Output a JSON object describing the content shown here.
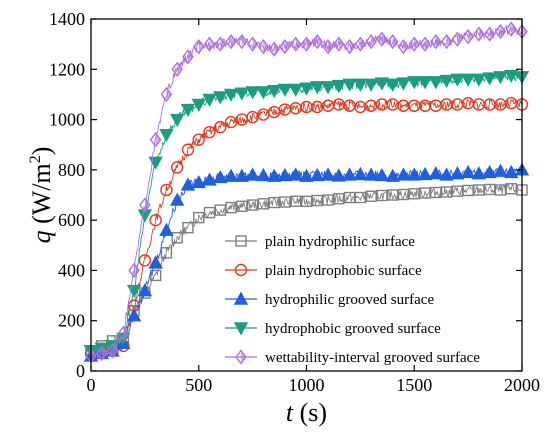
{
  "chart_data": {
    "type": "line",
    "title": "",
    "xlabel": {
      "symbol": "t",
      "unit": " (s)"
    },
    "ylabel": {
      "symbol": "q",
      "unit_open": " (W/m",
      "unit_sup": "2",
      "unit_close": ")"
    },
    "xlim": [
      0,
      2000
    ],
    "ylim": [
      0,
      1400
    ],
    "xticks": [
      0,
      500,
      1000,
      1500,
      2000
    ],
    "yticks": [
      0,
      200,
      400,
      600,
      800,
      1000,
      1200,
      1400
    ],
    "grid": false,
    "legend_position": "lower-right",
    "series": [
      {
        "name": "plain hydrophilic surface",
        "color": "#7f7f7f",
        "marker": "square",
        "x": [
          0,
          50,
          100,
          150,
          200,
          250,
          300,
          350,
          400,
          450,
          500,
          550,
          600,
          650,
          700,
          750,
          800,
          850,
          900,
          950,
          1000,
          1050,
          1100,
          1150,
          1200,
          1250,
          1300,
          1350,
          1400,
          1450,
          1500,
          1550,
          1600,
          1650,
          1700,
          1750,
          1800,
          1850,
          1900,
          1950,
          2000
        ],
        "y": [
          80,
          100,
          120,
          130,
          240,
          310,
          380,
          470,
          530,
          570,
          610,
          630,
          640,
          650,
          655,
          660,
          665,
          670,
          672,
          675,
          675,
          678,
          680,
          685,
          690,
          690,
          695,
          698,
          700,
          702,
          705,
          708,
          710,
          712,
          715,
          718,
          720,
          722,
          720,
          725,
          720
        ]
      },
      {
        "name": "plain hydrophobic surface",
        "color": "#e2391f",
        "marker": "circle",
        "x": [
          0,
          50,
          100,
          150,
          200,
          250,
          300,
          350,
          400,
          450,
          500,
          550,
          600,
          650,
          700,
          750,
          800,
          850,
          900,
          950,
          1000,
          1050,
          1100,
          1150,
          1200,
          1250,
          1300,
          1350,
          1400,
          1450,
          1500,
          1550,
          1600,
          1650,
          1700,
          1750,
          1800,
          1850,
          1900,
          1950,
          2000
        ],
        "y": [
          70,
          75,
          80,
          100,
          260,
          440,
          600,
          720,
          810,
          880,
          920,
          950,
          970,
          990,
          1000,
          1010,
          1020,
          1030,
          1040,
          1045,
          1050,
          1050,
          1055,
          1060,
          1055,
          1050,
          1055,
          1060,
          1060,
          1055,
          1055,
          1055,
          1055,
          1060,
          1060,
          1065,
          1060,
          1060,
          1060,
          1065,
          1060
        ]
      },
      {
        "name": "hydrophilic grooved surface",
        "color": "#1f5fe0",
        "marker": "triangle-up",
        "x": [
          0,
          50,
          100,
          150,
          200,
          250,
          300,
          350,
          400,
          450,
          500,
          550,
          600,
          650,
          700,
          750,
          800,
          850,
          900,
          950,
          1000,
          1050,
          1100,
          1150,
          1200,
          1250,
          1300,
          1350,
          1400,
          1450,
          1500,
          1550,
          1600,
          1650,
          1700,
          1750,
          1800,
          1850,
          1900,
          1950,
          2000
        ],
        "y": [
          60,
          70,
          80,
          110,
          220,
          320,
          430,
          560,
          680,
          740,
          750,
          760,
          770,
          775,
          775,
          780,
          778,
          775,
          778,
          780,
          775,
          778,
          780,
          776,
          780,
          782,
          780,
          778,
          775,
          780,
          780,
          782,
          785,
          780,
          785,
          790,
          785,
          790,
          795,
          790,
          800
        ]
      },
      {
        "name": "hydrophobic grooved surface",
        "color": "#1a9e80",
        "marker": "triangle-down",
        "x": [
          0,
          50,
          100,
          150,
          200,
          250,
          300,
          350,
          400,
          450,
          500,
          550,
          600,
          650,
          700,
          750,
          800,
          850,
          900,
          950,
          1000,
          1050,
          1100,
          1150,
          1200,
          1250,
          1300,
          1350,
          1400,
          1450,
          1500,
          1550,
          1600,
          1650,
          1700,
          1750,
          1800,
          1850,
          1900,
          1950,
          2000
        ],
        "y": [
          80,
          90,
          100,
          130,
          320,
          620,
          830,
          940,
          1000,
          1040,
          1060,
          1080,
          1090,
          1100,
          1105,
          1110,
          1110,
          1115,
          1120,
          1120,
          1125,
          1130,
          1130,
          1135,
          1140,
          1140,
          1140,
          1145,
          1140,
          1145,
          1150,
          1150,
          1150,
          1155,
          1160,
          1160,
          1160,
          1165,
          1170,
          1175,
          1170
        ]
      },
      {
        "name": "wettability-interval grooved surface",
        "color": "#b06fe0",
        "marker": "diamond",
        "x": [
          0,
          50,
          100,
          150,
          200,
          250,
          300,
          350,
          400,
          450,
          500,
          550,
          600,
          650,
          700,
          750,
          800,
          850,
          900,
          950,
          1000,
          1050,
          1100,
          1150,
          1200,
          1250,
          1300,
          1350,
          1400,
          1450,
          1500,
          1550,
          1600,
          1650,
          1700,
          1750,
          1800,
          1850,
          1900,
          1950,
          2000
        ],
        "y": [
          60,
          70,
          80,
          150,
          400,
          660,
          920,
          1100,
          1200,
          1250,
          1290,
          1300,
          1300,
          1310,
          1310,
          1300,
          1290,
          1280,
          1290,
          1300,
          1300,
          1310,
          1290,
          1300,
          1290,
          1300,
          1310,
          1320,
          1310,
          1290,
          1300,
          1300,
          1310,
          1310,
          1320,
          1330,
          1340,
          1340,
          1350,
          1360,
          1350
        ]
      }
    ]
  }
}
